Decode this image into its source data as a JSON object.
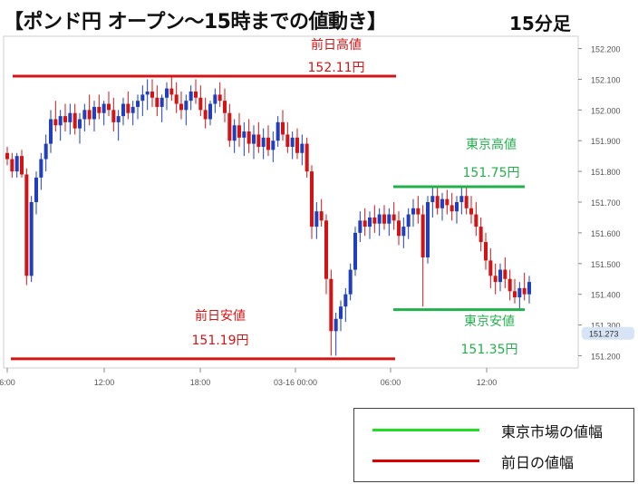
{
  "title": "【ポンド円 オープン～15時までの値動き】",
  "timeframe": "15分足",
  "colors": {
    "prev_day": "#d41414",
    "tokyo": "#22b04b",
    "up": "#1f3fbf",
    "down": "#d41414",
    "axis": "#888888",
    "price_tag_bg": "#d6e4f5"
  },
  "annotations": {
    "prev_high": {
      "label": "前日高値",
      "value_label": "152.11円",
      "price": 152.11
    },
    "prev_low": {
      "label": "前日安値",
      "value_label": "151.19円",
      "price": 151.19
    },
    "tokyo_high": {
      "label": "東京高値",
      "value_label": "151.75円",
      "price": 151.75
    },
    "tokyo_low": {
      "label": "東京安値",
      "value_label": "151.35円",
      "price": 151.35
    }
  },
  "current_price": "151.273",
  "legend": [
    {
      "label": "東京市場の値幅",
      "color": "#22dd22"
    },
    {
      "label": "前日の値幅",
      "color": "#dd0000"
    }
  ],
  "chart_data": {
    "type": "candlestick",
    "x_ticks": [
      "6:00",
      "12:00",
      "18:00",
      "03-16 00:00",
      "06:00",
      "12:00"
    ],
    "y_ticks": [
      "152.200",
      "152.100",
      "152.000",
      "151.900",
      "151.800",
      "151.700",
      "151.600",
      "151.500",
      "151.400",
      "151.300",
      "151.200"
    ],
    "ylim": [
      151.16,
      152.24
    ],
    "candles": [
      [
        151.86,
        151.88,
        151.82,
        151.84
      ],
      [
        151.84,
        151.86,
        151.78,
        151.8
      ],
      [
        151.8,
        151.86,
        151.78,
        151.85
      ],
      [
        151.85,
        151.87,
        151.78,
        151.79
      ],
      [
        151.79,
        151.81,
        151.43,
        151.46
      ],
      [
        151.46,
        151.72,
        151.44,
        151.7
      ],
      [
        151.7,
        151.8,
        151.66,
        151.78
      ],
      [
        151.78,
        151.86,
        151.74,
        151.84
      ],
      [
        151.84,
        151.92,
        151.8,
        151.89
      ],
      [
        151.89,
        152.0,
        151.86,
        151.97
      ],
      [
        151.97,
        152.03,
        151.93,
        151.95
      ],
      [
        151.95,
        152.0,
        151.9,
        151.98
      ],
      [
        151.98,
        152.02,
        151.93,
        151.96
      ],
      [
        151.96,
        152.02,
        151.92,
        151.99
      ],
      [
        151.99,
        152.02,
        151.92,
        151.94
      ],
      [
        151.94,
        151.99,
        151.89,
        151.97
      ],
      [
        151.97,
        152.02,
        151.93,
        152.0
      ],
      [
        152.0,
        152.05,
        151.95,
        151.97
      ],
      [
        151.97,
        152.03,
        151.93,
        152.01
      ],
      [
        152.01,
        152.05,
        151.97,
        151.99
      ],
      [
        151.99,
        152.03,
        151.95,
        152.02
      ],
      [
        152.02,
        152.06,
        151.98,
        152.0
      ],
      [
        152.0,
        152.04,
        151.93,
        151.96
      ],
      [
        151.96,
        152.0,
        151.9,
        151.98
      ],
      [
        151.98,
        152.04,
        151.95,
        152.02
      ],
      [
        152.02,
        152.06,
        151.97,
        151.99
      ],
      [
        151.99,
        152.03,
        151.95,
        152.01
      ],
      [
        152.01,
        152.05,
        151.97,
        152.03
      ],
      [
        152.03,
        152.08,
        151.98,
        152.05
      ],
      [
        152.05,
        152.1,
        152.0,
        152.06
      ],
      [
        152.06,
        152.1,
        152.01,
        152.04
      ],
      [
        152.04,
        152.08,
        151.98,
        152.01
      ],
      [
        152.01,
        152.05,
        151.96,
        152.04
      ],
      [
        152.04,
        152.09,
        152.0,
        152.07
      ],
      [
        152.07,
        152.11,
        152.03,
        152.05
      ],
      [
        152.05,
        152.09,
        151.99,
        152.02
      ],
      [
        152.02,
        152.06,
        151.97,
        152.0
      ],
      [
        152.0,
        152.05,
        151.95,
        152.03
      ],
      [
        152.03,
        152.08,
        152.0,
        152.06
      ],
      [
        152.06,
        152.1,
        152.02,
        152.04
      ],
      [
        152.04,
        152.08,
        151.98,
        152.0
      ],
      [
        152.0,
        152.04,
        151.94,
        151.97
      ],
      [
        151.97,
        152.03,
        151.95,
        152.02
      ],
      [
        152.02,
        152.07,
        151.99,
        152.05
      ],
      [
        152.05,
        152.09,
        152.01,
        152.03
      ],
      [
        152.03,
        152.07,
        151.96,
        151.99
      ],
      [
        151.99,
        152.02,
        151.88,
        151.9
      ],
      [
        151.9,
        151.97,
        151.86,
        151.95
      ],
      [
        151.95,
        151.99,
        151.88,
        151.91
      ],
      [
        151.91,
        151.96,
        151.85,
        151.93
      ],
      [
        151.93,
        151.97,
        151.86,
        151.89
      ],
      [
        151.89,
        151.95,
        151.84,
        151.92
      ],
      [
        151.92,
        151.96,
        151.86,
        151.88
      ],
      [
        151.88,
        151.94,
        151.84,
        151.91
      ],
      [
        151.91,
        151.95,
        151.85,
        151.87
      ],
      [
        151.87,
        151.93,
        151.83,
        151.9
      ],
      [
        151.9,
        151.98,
        151.88,
        151.96
      ],
      [
        151.96,
        152.0,
        151.9,
        151.92
      ],
      [
        151.92,
        151.96,
        151.86,
        151.88
      ],
      [
        151.88,
        151.93,
        151.84,
        151.91
      ],
      [
        151.91,
        151.94,
        151.84,
        151.86
      ],
      [
        151.86,
        151.92,
        151.82,
        151.89
      ],
      [
        151.89,
        151.91,
        151.78,
        151.8
      ],
      [
        151.8,
        151.82,
        151.58,
        151.62
      ],
      [
        151.62,
        151.7,
        151.58,
        151.67
      ],
      [
        151.67,
        151.71,
        151.62,
        151.64
      ],
      [
        151.64,
        151.66,
        151.4,
        151.45
      ],
      [
        151.45,
        151.48,
        151.2,
        151.28
      ],
      [
        151.28,
        151.34,
        151.2,
        151.32
      ],
      [
        151.32,
        151.38,
        151.28,
        151.36
      ],
      [
        151.36,
        151.42,
        151.31,
        151.4
      ],
      [
        151.4,
        151.5,
        151.38,
        151.48
      ],
      [
        151.48,
        151.62,
        151.46,
        151.6
      ],
      [
        151.6,
        151.67,
        151.57,
        151.64
      ],
      [
        151.64,
        151.68,
        151.59,
        151.62
      ],
      [
        151.62,
        151.67,
        151.58,
        151.65
      ],
      [
        151.65,
        151.69,
        151.6,
        151.63
      ],
      [
        151.63,
        151.68,
        151.59,
        151.66
      ],
      [
        151.66,
        151.69,
        151.61,
        151.63
      ],
      [
        151.63,
        151.68,
        151.59,
        151.66
      ],
      [
        151.66,
        151.7,
        151.61,
        151.64
      ],
      [
        151.64,
        151.67,
        151.56,
        151.59
      ],
      [
        151.59,
        151.65,
        151.55,
        151.62
      ],
      [
        151.62,
        151.68,
        151.58,
        151.66
      ],
      [
        151.66,
        151.71,
        151.62,
        151.68
      ],
      [
        151.68,
        151.72,
        151.63,
        151.66
      ],
      [
        151.66,
        151.69,
        151.36,
        151.52
      ],
      [
        151.52,
        151.72,
        151.5,
        151.7
      ],
      [
        151.7,
        151.75,
        151.65,
        151.72
      ],
      [
        151.72,
        151.75,
        151.66,
        151.68
      ],
      [
        151.68,
        151.73,
        151.64,
        151.71
      ],
      [
        151.71,
        151.74,
        151.66,
        151.69
      ],
      [
        151.69,
        151.73,
        151.64,
        151.67
      ],
      [
        151.67,
        151.72,
        151.63,
        151.7
      ],
      [
        151.7,
        151.75,
        151.66,
        151.72
      ],
      [
        151.72,
        151.75,
        151.66,
        151.68
      ],
      [
        151.68,
        151.72,
        151.63,
        151.66
      ],
      [
        151.66,
        151.7,
        151.59,
        151.62
      ],
      [
        151.62,
        151.65,
        151.54,
        151.57
      ],
      [
        151.57,
        151.6,
        151.48,
        151.51
      ],
      [
        151.51,
        151.55,
        151.42,
        151.46
      ],
      [
        151.46,
        151.5,
        151.4,
        151.44
      ],
      [
        151.44,
        151.5,
        151.41,
        151.48
      ],
      [
        151.48,
        151.52,
        151.42,
        151.45
      ],
      [
        151.45,
        151.48,
        151.38,
        151.41
      ],
      [
        151.41,
        151.45,
        151.37,
        151.39
      ],
      [
        151.39,
        151.44,
        151.35,
        151.42
      ],
      [
        151.42,
        151.47,
        151.38,
        151.4
      ],
      [
        151.4,
        151.46,
        151.37,
        151.44
      ]
    ]
  }
}
